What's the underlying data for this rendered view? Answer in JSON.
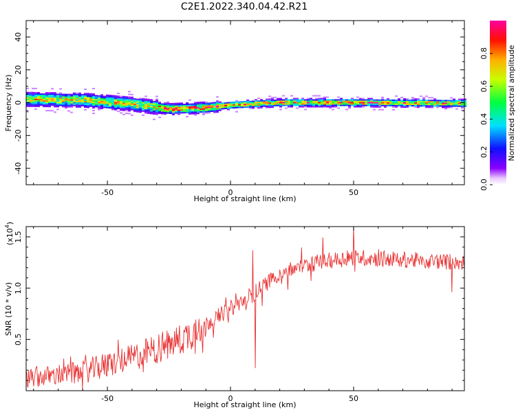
{
  "title": "C2E1.2022.340.04.42.R21",
  "colors": {
    "snr_line": "#e83030",
    "frame": "#000000"
  },
  "chart_data": [
    {
      "type": "heatmap",
      "xlabel": "Height of straight line (km)",
      "ylabel": "Frequency (Hz)",
      "xlim": [
        -83,
        95
      ],
      "ylim": [
        -50,
        50
      ],
      "xticks": [
        -50,
        0,
        50
      ],
      "yticks": [
        -40,
        -20,
        0,
        20,
        40
      ],
      "colorbar": {
        "label": "Normalized spectral amplitude",
        "ticks": [
          "0.0",
          "0.2",
          "0.4",
          "0.6",
          "0.8"
        ],
        "range": [
          0,
          1
        ],
        "colormap": "rainbow (purple-blue-cyan-green-yellow-red-magenta)"
      },
      "frequency_center_trend": [
        {
          "x": -83,
          "y": 2
        },
        {
          "x": -60,
          "y": 1.5
        },
        {
          "x": -40,
          "y": -1
        },
        {
          "x": -25,
          "y": -4
        },
        {
          "x": -10,
          "y": -3
        },
        {
          "x": 0,
          "y": -1.5
        },
        {
          "x": 20,
          "y": 0
        },
        {
          "x": 50,
          "y": 0
        },
        {
          "x": 95,
          "y": -0.5
        }
      ]
    },
    {
      "type": "line",
      "xlabel": "Height of straight line (km)",
      "ylabel": "SNR (10 * v/v)",
      "ymultiplier": "(x10",
      "ymultiplier_exp": "4",
      "ymultiplier_close": ")",
      "xlim": [
        -83,
        95
      ],
      "ylim": [
        0,
        1.6
      ],
      "xticks": [
        -50,
        0,
        50
      ],
      "yticks": [
        "0.5",
        "1.0",
        "1.5"
      ],
      "ytick_values": [
        0.5,
        1.0,
        1.5
      ],
      "trend": [
        {
          "x": -83,
          "y": 0.12
        },
        {
          "x": -60,
          "y": 0.18
        },
        {
          "x": -40,
          "y": 0.32
        },
        {
          "x": -20,
          "y": 0.5
        },
        {
          "x": 0,
          "y": 0.8
        },
        {
          "x": 8,
          "y": 0.92
        },
        {
          "x": 20,
          "y": 1.15
        },
        {
          "x": 35,
          "y": 1.25
        },
        {
          "x": 50,
          "y": 1.3
        },
        {
          "x": 95,
          "y": 1.25
        }
      ],
      "notable_points": [
        {
          "x": 9,
          "y": 1.37
        },
        {
          "x": 10,
          "y": 0.22
        },
        {
          "x": 50,
          "y": 1.6
        },
        {
          "x": 90,
          "y": 0.96
        }
      ]
    }
  ]
}
